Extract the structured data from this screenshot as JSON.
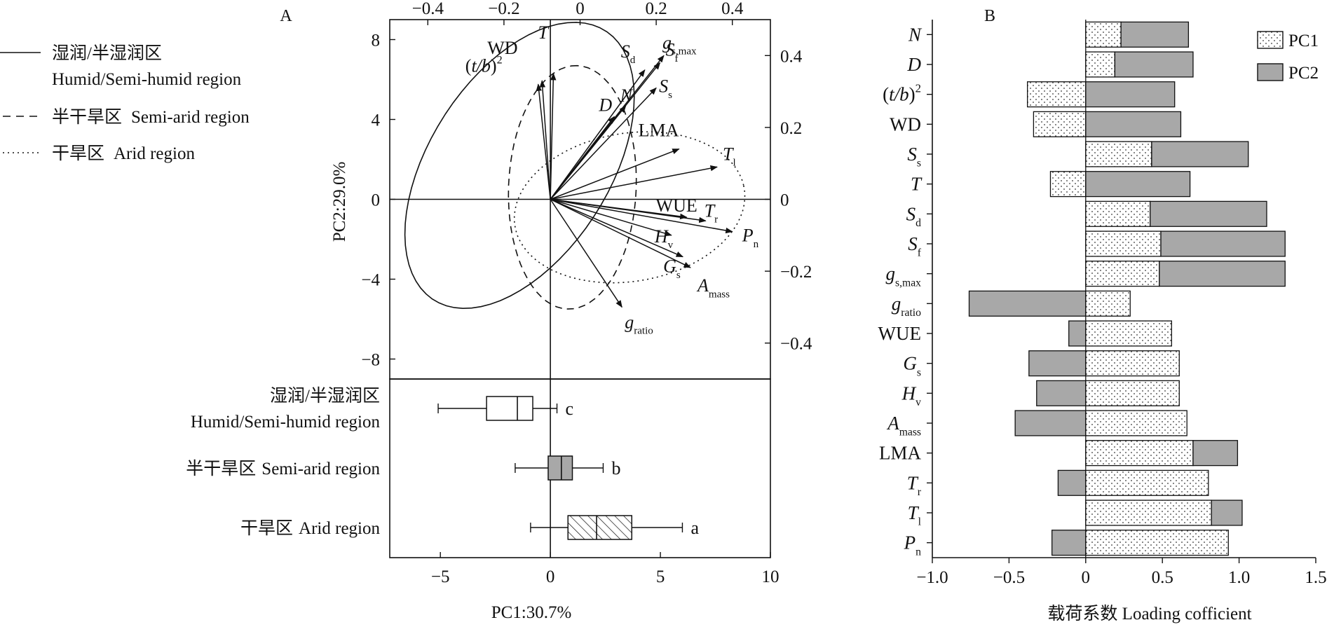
{
  "panel_a": {
    "label": "A",
    "x_label": "PC1:30.7%",
    "y_label": "PC2:29.0%",
    "x_ticks": [
      -5,
      0,
      5,
      10
    ],
    "y_ticks": [
      8,
      4,
      0,
      -4,
      -8
    ],
    "top_ticks": [
      "−0.4",
      "−0.2",
      "0",
      "0.2",
      "0.4"
    ],
    "right_ticks": [
      "0.4",
      "0.2",
      "0",
      "−0.2",
      "−0.4"
    ],
    "legend": [
      {
        "style": "solid",
        "zh": "湿润/半湿润区",
        "en": "Humid/Semi-humid region"
      },
      {
        "style": "dashed",
        "zh": "半干旱区",
        "en": "Semi-arid region"
      },
      {
        "style": "dotted",
        "zh": "干旱区",
        "en": "Arid region"
      }
    ]
  },
  "panel_b": {
    "label": "B",
    "x_label": "载荷系数 Loading cofficient",
    "x_ticks": [
      "−1.0",
      "−0.5",
      "0",
      "0.5",
      "1.0",
      "1.5"
    ],
    "legend": [
      "PC1",
      "PC2"
    ]
  },
  "chart_data": [
    {
      "type": "scatter",
      "subtype": "pca-biplot",
      "xlabel": "PC1:30.7%",
      "ylabel": "PC2:29.0%",
      "xlim": [
        -7.3,
        10
      ],
      "ylim": [
        -9,
        9
      ],
      "loading_axes": {
        "x": [
          -0.5,
          0.5
        ],
        "y": [
          -0.5,
          0.5
        ]
      },
      "loadings": [
        {
          "var": "WD",
          "x": -0.1,
          "y": 0.33
        },
        {
          "var": "T",
          "x": -0.07,
          "y": 0.35
        },
        {
          "var": "(t/b)²",
          "x": -0.11,
          "y": 0.32
        },
        {
          "var": "D",
          "x": 0.09,
          "y": 0.23
        },
        {
          "var": "N",
          "x": 0.12,
          "y": 0.26
        },
        {
          "var": "S_d",
          "x": 0.17,
          "y": 0.36
        },
        {
          "var": "g_s,max",
          "x": 0.22,
          "y": 0.4
        },
        {
          "var": "S_f",
          "x": 0.21,
          "y": 0.38
        },
        {
          "var": "S_s",
          "x": 0.2,
          "y": 0.31
        },
        {
          "var": "LMA",
          "x": 0.26,
          "y": 0.14
        },
        {
          "var": "T_l",
          "x": 0.36,
          "y": 0.09
        },
        {
          "var": "WUE",
          "x": 0.28,
          "y": -0.05
        },
        {
          "var": "T_r",
          "x": 0.33,
          "y": -0.06
        },
        {
          "var": "P_n",
          "x": 0.4,
          "y": -0.09
        },
        {
          "var": "H_v",
          "x": 0.24,
          "y": -0.1
        },
        {
          "var": "G_s",
          "x": 0.27,
          "y": -0.16
        },
        {
          "var": "A_mass",
          "x": 0.29,
          "y": -0.19
        },
        {
          "var": "g_ratio",
          "x": 0.11,
          "y": -0.3
        }
      ],
      "groups": [
        {
          "zh": "湿润/半湿润区",
          "en": "Humid/Semi-humid region",
          "letter": "c",
          "min": -5.1,
          "q1": -2.9,
          "median": -1.5,
          "q3": -0.8,
          "max": 0.3
        },
        {
          "zh": "半干旱区",
          "en": "Semi-arid region",
          "letter": "b",
          "min": -1.6,
          "q1": -0.1,
          "median": 0.5,
          "q3": 1.0,
          "max": 2.4
        },
        {
          "zh": "干旱区",
          "en": "Arid region",
          "letter": "a",
          "min": -0.9,
          "q1": 0.8,
          "median": 2.1,
          "q3": 3.7,
          "max": 6.0
        }
      ]
    },
    {
      "type": "bar",
      "orientation": "horizontal",
      "stacked": true,
      "xlabel": "载荷系数 Loading cofficient",
      "xlim": [
        -1.0,
        1.5
      ],
      "categories": [
        "N",
        "D",
        "(t/b)²",
        "WD",
        "S_s",
        "T",
        "S_d",
        "S_f",
        "g_s,max",
        "g_ratio",
        "WUE",
        "G_s",
        "H_v",
        "A_mass",
        "LMA",
        "T_r",
        "T_l",
        "P_n"
      ],
      "series": [
        {
          "name": "PC1",
          "values": [
            0.23,
            0.19,
            -0.38,
            -0.34,
            0.43,
            -0.23,
            0.42,
            0.49,
            0.48,
            0.29,
            0.56,
            0.61,
            0.61,
            0.66,
            0.7,
            0.8,
            0.82,
            0.93
          ]
        },
        {
          "name": "PC2",
          "values": [
            0.44,
            0.51,
            0.58,
            0.62,
            0.63,
            0.68,
            0.76,
            0.81,
            0.82,
            -0.76,
            -0.11,
            -0.37,
            -0.32,
            -0.46,
            0.29,
            -0.18,
            0.2,
            -0.22
          ]
        }
      ],
      "legend_position": "top-right"
    }
  ]
}
